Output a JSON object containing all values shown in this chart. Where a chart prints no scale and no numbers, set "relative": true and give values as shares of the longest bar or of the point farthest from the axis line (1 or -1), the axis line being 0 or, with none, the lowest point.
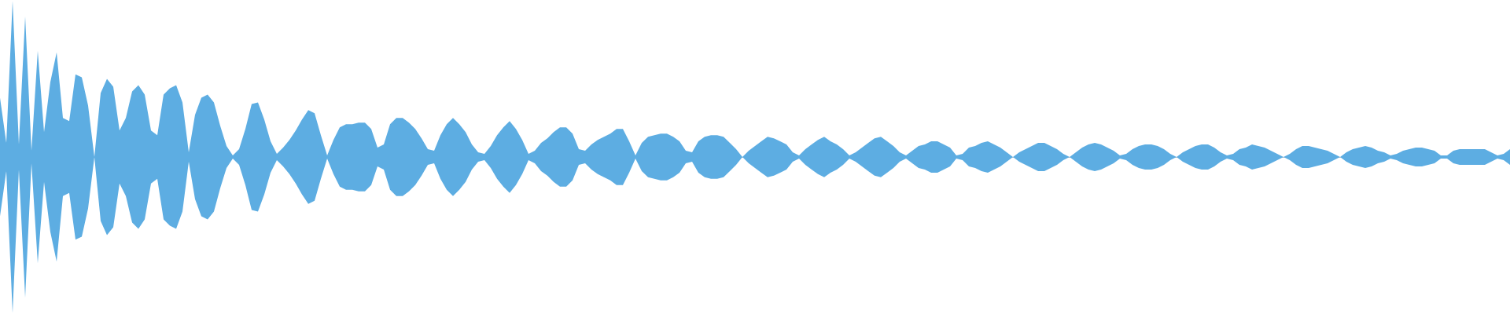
{
  "chart_data": {
    "type": "area",
    "relative": true,
    "categories": [
      null,
      null,
      null,
      null,
      null,
      null,
      null,
      null,
      null,
      null,
      null,
      null,
      null,
      null,
      null,
      null,
      null,
      null,
      null,
      null,
      null,
      null,
      null,
      null,
      null,
      null,
      null,
      null,
      null,
      null,
      null,
      null,
      null,
      null,
      null,
      null,
      null,
      null,
      null,
      null,
      null,
      null,
      null,
      null,
      null,
      null,
      null,
      null,
      null,
      null,
      null,
      null,
      null,
      null,
      null,
      null,
      null,
      null,
      null,
      null,
      null,
      null,
      null,
      null,
      null,
      null,
      null,
      null,
      null,
      null,
      null,
      null,
      null,
      null,
      null,
      null,
      null,
      null,
      null,
      null,
      null,
      null,
      null,
      null,
      null,
      null,
      null,
      null,
      null,
      null,
      null,
      null,
      null,
      null,
      null,
      null,
      null,
      null,
      null,
      null,
      null,
      null,
      null,
      null,
      null,
      null,
      null,
      null,
      null,
      null,
      null,
      null,
      null,
      null,
      null,
      null,
      null,
      null,
      null,
      null,
      null,
      null,
      null,
      null,
      null,
      null,
      null,
      null,
      null,
      null,
      null,
      null,
      null,
      null,
      null,
      null,
      null,
      null,
      null,
      null,
      null,
      null,
      null,
      null,
      null,
      null,
      null,
      null,
      null,
      null,
      null,
      null,
      null,
      null,
      null,
      null,
      null,
      null,
      null,
      null,
      null,
      null,
      null,
      null,
      null,
      null,
      null,
      null,
      null,
      null,
      null,
      null,
      null,
      null,
      null,
      null,
      null,
      null,
      null,
      null,
      null,
      null,
      null,
      null,
      null,
      null,
      null,
      null,
      null,
      null,
      null,
      null,
      null,
      null,
      null,
      null,
      null,
      null,
      null,
      null,
      null,
      null,
      null,
      null,
      null,
      null,
      null,
      null,
      null,
      null,
      null,
      null,
      null,
      null,
      null,
      null,
      null,
      null,
      null,
      null,
      null,
      null,
      null,
      null,
      null,
      null,
      null,
      null,
      null,
      null,
      null,
      null,
      null,
      null,
      null,
      null,
      null,
      null,
      null,
      null,
      null
    ],
    "series": [
      {
        "color": "#5dade2",
        "values": [
          0.38,
          0.09,
          1.0,
          0.08,
          0.9,
          0.04,
          0.68,
          0.16,
          0.48,
          0.67,
          0.25,
          0.23,
          0.53,
          0.51,
          0.33,
          0,
          0.41,
          0.5,
          0.45,
          0.17,
          0.25,
          0.42,
          0.46,
          0.4,
          0.17,
          0.14,
          0.4,
          0.44,
          0.46,
          0.35,
          0.03,
          0.27,
          0.38,
          0.4,
          0.35,
          0.2,
          0.07,
          0.01,
          0.05,
          0.18,
          0.34,
          0.35,
          0.24,
          0.1,
          0.02,
          0.06,
          0.11,
          0.17,
          0.24,
          0.3,
          0.28,
          0.14,
          0.01,
          0.11,
          0.19,
          0.21,
          0.21,
          0.22,
          0.22,
          0.18,
          0.06,
          0.08,
          0.21,
          0.25,
          0.25,
          0.22,
          0.18,
          0.12,
          0.05,
          0.04,
          0.14,
          0.21,
          0.25,
          0.21,
          0.16,
          0.08,
          0.03,
          0.02,
          0.07,
          0.14,
          0.19,
          0.23,
          0.18,
          0.11,
          0.02,
          0.04,
          0.09,
          0.12,
          0.16,
          0.19,
          0.19,
          0.15,
          0.05,
          0.04,
          0.08,
          0.11,
          0.13,
          0.15,
          0.18,
          0.18,
          0.1,
          0.01,
          0.09,
          0.13,
          0.14,
          0.15,
          0.15,
          0.13,
          0.1,
          0.04,
          0.03,
          0.1,
          0.13,
          0.14,
          0.14,
          0.13,
          0.09,
          0.05,
          0,
          0.04,
          0.07,
          0.1,
          0.13,
          0.12,
          0.1,
          0.08,
          0.03,
          0.01,
          0.05,
          0.08,
          0.11,
          0.13,
          0.1,
          0.08,
          0.05,
          0.01,
          0.03,
          0.06,
          0.09,
          0.12,
          0.13,
          0.1,
          0.07,
          0.03,
          0.01,
          0.04,
          0.07,
          0.08,
          0.1,
          0.1,
          0.08,
          0.06,
          0.01,
          0.02,
          0.06,
          0.07,
          0.09,
          0.1,
          0.08,
          0.06,
          0.03,
          0,
          0.03,
          0.05,
          0.07,
          0.09,
          0.09,
          0.07,
          0.05,
          0.02,
          0,
          0.03,
          0.06,
          0.08,
          0.09,
          0.08,
          0.06,
          0.04,
          0.01,
          0.02,
          0.05,
          0.07,
          0.08,
          0.08,
          0.07,
          0.05,
          0.02,
          0,
          0.03,
          0.05,
          0.07,
          0.08,
          0.08,
          0.06,
          0.03,
          0.01,
          0.02,
          0.05,
          0.06,
          0.08,
          0.07,
          0.06,
          0.04,
          0.02,
          0,
          0.02,
          0.05,
          0.07,
          0.07,
          0.06,
          0.05,
          0.04,
          0.02,
          0,
          0.03,
          0.05,
          0.06,
          0.07,
          0.06,
          0.04,
          0.03,
          0.01,
          0.02,
          0.04,
          0.05,
          0.06,
          0.06,
          0.05,
          0.04,
          0.01,
          0.01,
          0.04,
          0.05,
          0.05,
          0.05,
          0.05,
          0.05,
          0.03,
          0.01,
          0.02,
          0.05
        ]
      },
      {
        "color": "#5dade2",
        "values": [
          -0.38,
          -0.09,
          -1.0,
          -0.08,
          -0.9,
          -0.04,
          -0.68,
          -0.16,
          -0.48,
          -0.67,
          -0.25,
          -0.23,
          -0.53,
          -0.51,
          -0.33,
          0,
          -0.41,
          -0.5,
          -0.45,
          -0.17,
          -0.25,
          -0.42,
          -0.46,
          -0.4,
          -0.17,
          -0.14,
          -0.4,
          -0.44,
          -0.46,
          -0.35,
          -0.03,
          -0.27,
          -0.38,
          -0.4,
          -0.35,
          -0.2,
          -0.07,
          -0.01,
          -0.05,
          -0.18,
          -0.34,
          -0.35,
          -0.24,
          -0.1,
          -0.02,
          -0.06,
          -0.11,
          -0.17,
          -0.24,
          -0.3,
          -0.28,
          -0.14,
          -0.01,
          -0.11,
          -0.19,
          -0.21,
          -0.21,
          -0.22,
          -0.22,
          -0.18,
          -0.06,
          -0.08,
          -0.21,
          -0.25,
          -0.25,
          -0.22,
          -0.18,
          -0.12,
          -0.05,
          -0.04,
          -0.14,
          -0.21,
          -0.25,
          -0.21,
          -0.16,
          -0.08,
          -0.03,
          -0.02,
          -0.07,
          -0.14,
          -0.19,
          -0.23,
          -0.18,
          -0.11,
          -0.02,
          -0.04,
          -0.09,
          -0.12,
          -0.16,
          -0.19,
          -0.19,
          -0.15,
          -0.05,
          -0.04,
          -0.08,
          -0.11,
          -0.13,
          -0.15,
          -0.18,
          -0.18,
          -0.1,
          -0.01,
          -0.09,
          -0.13,
          -0.14,
          -0.15,
          -0.15,
          -0.13,
          -0.1,
          -0.04,
          -0.03,
          -0.1,
          -0.13,
          -0.14,
          -0.14,
          -0.13,
          -0.09,
          -0.05,
          0,
          -0.04,
          -0.07,
          -0.1,
          -0.13,
          -0.12,
          -0.1,
          -0.08,
          -0.03,
          -0.01,
          -0.05,
          -0.08,
          -0.11,
          -0.13,
          -0.1,
          -0.08,
          -0.05,
          -0.01,
          -0.03,
          -0.06,
          -0.09,
          -0.12,
          -0.13,
          -0.1,
          -0.07,
          -0.03,
          -0.01,
          -0.04,
          -0.07,
          -0.08,
          -0.1,
          -0.1,
          -0.08,
          -0.06,
          -0.01,
          -0.02,
          -0.06,
          -0.07,
          -0.09,
          -0.1,
          -0.08,
          -0.06,
          -0.03,
          0,
          -0.03,
          -0.05,
          -0.07,
          -0.09,
          -0.09,
          -0.07,
          -0.05,
          -0.02,
          0,
          -0.03,
          -0.06,
          -0.08,
          -0.09,
          -0.08,
          -0.06,
          -0.04,
          -0.01,
          -0.02,
          -0.05,
          -0.07,
          -0.08,
          -0.08,
          -0.07,
          -0.05,
          -0.02,
          0,
          -0.03,
          -0.05,
          -0.07,
          -0.08,
          -0.08,
          -0.06,
          -0.03,
          -0.01,
          -0.02,
          -0.05,
          -0.06,
          -0.08,
          -0.07,
          -0.06,
          -0.04,
          -0.02,
          0,
          -0.02,
          -0.05,
          -0.07,
          -0.07,
          -0.06,
          -0.05,
          -0.04,
          -0.02,
          0,
          -0.03,
          -0.05,
          -0.06,
          -0.07,
          -0.06,
          -0.04,
          -0.03,
          -0.01,
          -0.02,
          -0.04,
          -0.05,
          -0.06,
          -0.06,
          -0.05,
          -0.04,
          -0.01,
          -0.01,
          -0.04,
          -0.05,
          -0.05,
          -0.05,
          -0.05,
          -0.05,
          -0.03,
          -0.01,
          -0.02,
          -0.05
        ]
      }
    ]
  }
}
